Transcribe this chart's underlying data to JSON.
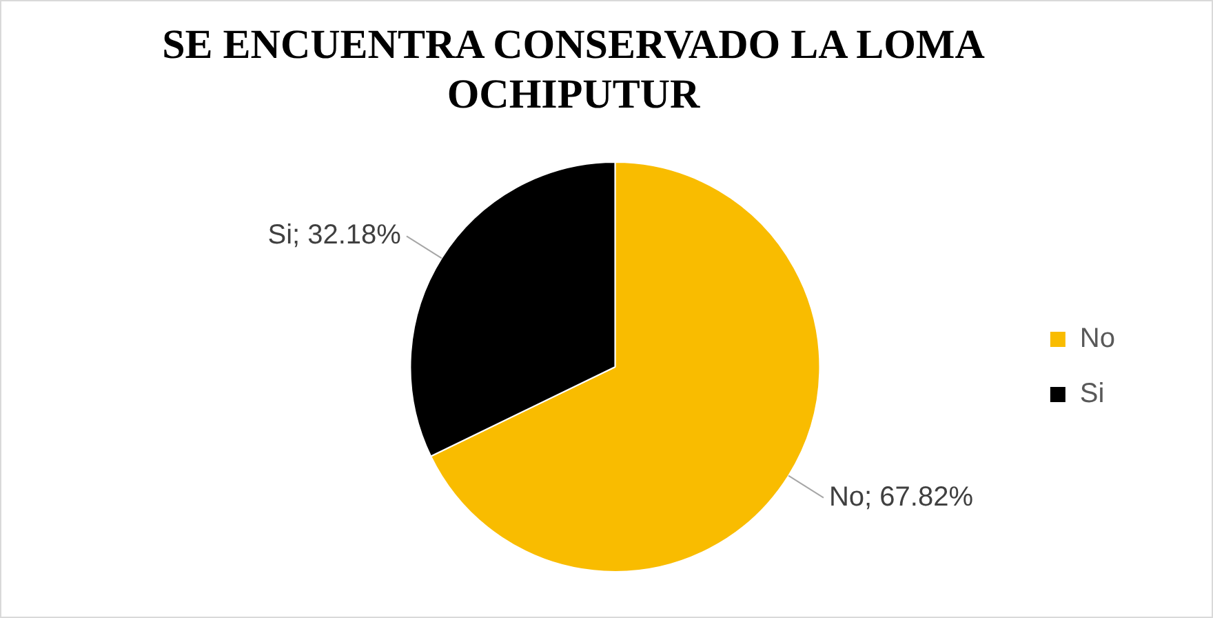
{
  "chart_data": {
    "type": "pie",
    "title": "SE ENCUENTRA CONSERVADO LA LOMA OCHIPUTUR",
    "categories": [
      "No",
      "Si"
    ],
    "values": [
      67.82,
      32.18
    ],
    "colors": [
      "#f9bc00",
      "#000000"
    ],
    "value_labels": [
      "No; 67.82%",
      "Si; 32.18%"
    ],
    "legend": "right"
  }
}
